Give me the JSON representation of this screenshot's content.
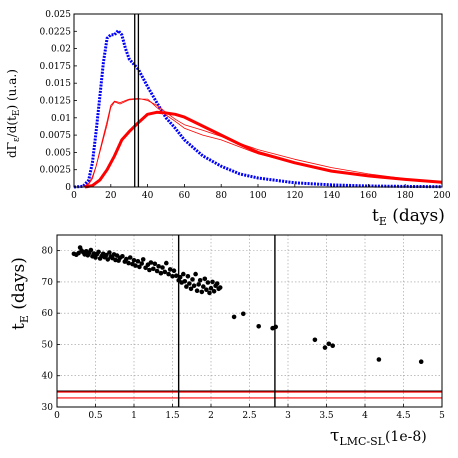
{
  "chart_data": [
    {
      "type": "line",
      "xlabel": "t",
      "xlabel_sub": "E",
      "xlabel_unit": " (days)",
      "ylabel": "dΓ",
      "ylabel_sub1": "ε",
      "ylabel_mid": "/d(t",
      "ylabel_sub2": "E",
      "ylabel_unit": ") (u.a.)",
      "xlim": [
        0,
        200
      ],
      "ylim": [
        0,
        0.025
      ],
      "xticks": [
        "0",
        "20",
        "40",
        "60",
        "80",
        "100",
        "120",
        "140",
        "160",
        "180",
        "200"
      ],
      "yticks": [
        "0",
        "0.0025",
        "0.005",
        "0.0075",
        "0.01",
        "0.0125",
        "0.015",
        "0.0175",
        "0.02",
        "0.0225",
        "0.025"
      ],
      "grid": false,
      "vlines": [
        33,
        35
      ],
      "series": [
        {
          "color": "#0000ff",
          "style": "dotted",
          "points": [
            [
              0,
              0
            ],
            [
              5,
              0.0001
            ],
            [
              8,
              0.001
            ],
            [
              10,
              0.0035
            ],
            [
              12,
              0.008
            ],
            [
              14,
              0.013
            ],
            [
              16,
              0.018
            ],
            [
              18,
              0.0215
            ],
            [
              20,
              0.022
            ],
            [
              22,
              0.022
            ],
            [
              24,
              0.0226
            ],
            [
              26,
              0.022
            ],
            [
              28,
              0.02
            ],
            [
              30,
              0.0185
            ],
            [
              35,
              0.017
            ],
            [
              40,
              0.0145
            ],
            [
              45,
              0.0122
            ],
            [
              50,
              0.01
            ],
            [
              55,
              0.0085
            ],
            [
              60,
              0.0068
            ],
            [
              70,
              0.0045
            ],
            [
              80,
              0.003
            ],
            [
              90,
              0.0019
            ],
            [
              100,
              0.0013
            ],
            [
              120,
              0.0006
            ],
            [
              140,
              0.0003
            ],
            [
              160,
              0.00015
            ],
            [
              180,
              8e-05
            ],
            [
              200,
              4e-05
            ]
          ]
        },
        {
          "color": "#ff0000",
          "style": "thin",
          "points": [
            [
              5,
              0
            ],
            [
              8,
              0.0005
            ],
            [
              10,
              0.0015
            ],
            [
              12,
              0.003
            ],
            [
              15,
              0.006
            ],
            [
              18,
              0.009
            ],
            [
              20,
              0.0115
            ],
            [
              22,
              0.0123
            ],
            [
              25,
              0.012
            ],
            [
              30,
              0.0126
            ],
            [
              35,
              0.0127
            ],
            [
              40,
              0.0127
            ],
            [
              45,
              0.0115
            ],
            [
              50,
              0.0104
            ],
            [
              55,
              0.0095
            ],
            [
              60,
              0.0085
            ],
            [
              70,
              0.0075
            ],
            [
              80,
              0.0068
            ],
            [
              90,
              0.0058
            ],
            [
              100,
              0.0048
            ],
            [
              120,
              0.0035
            ],
            [
              140,
              0.0024
            ],
            [
              160,
              0.0016
            ],
            [
              180,
              0.001
            ],
            [
              200,
              0.0006
            ]
          ]
        },
        {
          "color": "#ff0000",
          "style": "thin",
          "points": [
            [
              5,
              0
            ],
            [
              8,
              0.0004
            ],
            [
              10,
              0.0012
            ],
            [
              12,
              0.003
            ],
            [
              15,
              0.0063
            ],
            [
              18,
              0.0095
            ],
            [
              20,
              0.0118
            ],
            [
              22,
              0.0124
            ],
            [
              25,
              0.0122
            ],
            [
              30,
              0.0127
            ],
            [
              35,
              0.0128
            ],
            [
              40,
              0.0125
            ],
            [
              45,
              0.0118
            ],
            [
              50,
              0.0108
            ],
            [
              55,
              0.0098
            ],
            [
              60,
              0.009
            ],
            [
              70,
              0.0082
            ],
            [
              80,
              0.0073
            ],
            [
              90,
              0.0063
            ],
            [
              100,
              0.0054
            ],
            [
              120,
              0.004
            ],
            [
              140,
              0.0028
            ],
            [
              160,
              0.0019
            ],
            [
              180,
              0.0012
            ],
            [
              200,
              0.0007
            ]
          ]
        },
        {
          "color": "#ff0000",
          "style": "thick",
          "points": [
            [
              6,
              0
            ],
            [
              10,
              0.0002
            ],
            [
              14,
              0.001
            ],
            [
              18,
              0.0025
            ],
            [
              22,
              0.0045
            ],
            [
              26,
              0.0068
            ],
            [
              30,
              0.008
            ],
            [
              35,
              0.0093
            ],
            [
              40,
              0.0105
            ],
            [
              45,
              0.0108
            ],
            [
              50,
              0.0107
            ],
            [
              55,
              0.0105
            ],
            [
              60,
              0.0101
            ],
            [
              70,
              0.0088
            ],
            [
              80,
              0.0075
            ],
            [
              90,
              0.0062
            ],
            [
              100,
              0.005
            ],
            [
              120,
              0.0035
            ],
            [
              140,
              0.0023
            ],
            [
              160,
              0.0016
            ],
            [
              180,
              0.0011
            ],
            [
              200,
              0.0007
            ]
          ]
        }
      ]
    },
    {
      "type": "scatter",
      "xlabel": "τ",
      "xlabel_sub": "LMC-SL",
      "xlabel_unit": "(1e-8)",
      "ylabel": "t",
      "ylabel_sub": "E",
      "ylabel_unit": " (days)",
      "xlim": [
        0,
        5
      ],
      "ylim": [
        30,
        85
      ],
      "xticks": [
        "0",
        "0.5",
        "1",
        "1.5",
        "2",
        "2.5",
        "3",
        "3.5",
        "4",
        "4.5",
        "5"
      ],
      "yticks": [
        "30",
        "40",
        "50",
        "60",
        "70",
        "80"
      ],
      "grid": true,
      "vlines": [
        1.58,
        2.83
      ],
      "hlines": [
        {
          "y": 35.1,
          "color": "#000000"
        },
        {
          "y": 34.8,
          "color": "#ff0000"
        },
        {
          "y": 32.9,
          "color": "#ff0000"
        }
      ],
      "points": [
        [
          0.22,
          79
        ],
        [
          0.25,
          78.7
        ],
        [
          0.28,
          79.2
        ],
        [
          0.3,
          81
        ],
        [
          0.32,
          80
        ],
        [
          0.34,
          79.5
        ],
        [
          0.36,
          78.8
        ],
        [
          0.38,
          79.8
        ],
        [
          0.4,
          78.5
        ],
        [
          0.42,
          79.3
        ],
        [
          0.44,
          80.2
        ],
        [
          0.46,
          78.2
        ],
        [
          0.48,
          79.1
        ],
        [
          0.5,
          77.8
        ],
        [
          0.52,
          78.9
        ],
        [
          0.54,
          79.6
        ],
        [
          0.56,
          77.5
        ],
        [
          0.58,
          78.3
        ],
        [
          0.6,
          79
        ],
        [
          0.62,
          77.9
        ],
        [
          0.64,
          78.6
        ],
        [
          0.66,
          77.2
        ],
        [
          0.68,
          79.4
        ],
        [
          0.7,
          78.1
        ],
        [
          0.72,
          77.6
        ],
        [
          0.74,
          78.8
        ],
        [
          0.76,
          77
        ],
        [
          0.78,
          78.4
        ],
        [
          0.8,
          76.8
        ],
        [
          0.82,
          77.7
        ],
        [
          0.85,
          78.2
        ],
        [
          0.88,
          76.5
        ],
        [
          0.9,
          77.3
        ],
        [
          0.93,
          76
        ],
        [
          0.95,
          77.8
        ],
        [
          0.98,
          75.7
        ],
        [
          1.0,
          76.9
        ],
        [
          1.02,
          75.2
        ],
        [
          1.05,
          76.6
        ],
        [
          1.07,
          74.8
        ],
        [
          1.1,
          75.9
        ],
        [
          1.12,
          77.2
        ],
        [
          1.15,
          74.5
        ],
        [
          1.18,
          75.5
        ],
        [
          1.2,
          73.8
        ],
        [
          1.22,
          76.2
        ],
        [
          1.25,
          74.2
        ],
        [
          1.27,
          75.8
        ],
        [
          1.3,
          73.5
        ],
        [
          1.32,
          75
        ],
        [
          1.35,
          72.8
        ],
        [
          1.37,
          74.6
        ],
        [
          1.4,
          73.2
        ],
        [
          1.42,
          76
        ],
        [
          1.45,
          72.5
        ],
        [
          1.47,
          74
        ],
        [
          1.5,
          71.8
        ],
        [
          1.52,
          73.6
        ],
        [
          1.55,
          72
        ],
        [
          1.58,
          70.5
        ],
        [
          1.6,
          71.5
        ],
        [
          1.62,
          69.8
        ],
        [
          1.64,
          72.5
        ],
        [
          1.66,
          70.2
        ],
        [
          1.68,
          68.5
        ],
        [
          1.7,
          71.8
        ],
        [
          1.72,
          69.5
        ],
        [
          1.74,
          67.8
        ],
        [
          1.76,
          70.8
        ],
        [
          1.78,
          68.8
        ],
        [
          1.8,
          72.5
        ],
        [
          1.82,
          67.2
        ],
        [
          1.84,
          69.2
        ],
        [
          1.86,
          70.5
        ],
        [
          1.88,
          66.8
        ],
        [
          1.9,
          68.5
        ],
        [
          1.92,
          71
        ],
        [
          1.94,
          67.5
        ],
        [
          1.96,
          69.8
        ],
        [
          1.98,
          66.5
        ],
        [
          2.0,
          68
        ],
        [
          2.02,
          70
        ],
        [
          2.04,
          67
        ],
        [
          2.06,
          68.8
        ],
        [
          2.08,
          69.5
        ],
        [
          2.1,
          67.8
        ],
        [
          2.12,
          68.2
        ],
        [
          2.3,
          58.8
        ],
        [
          2.42,
          59.8
        ],
        [
          2.62,
          55.8
        ],
        [
          2.8,
          55.2
        ],
        [
          2.84,
          55.6
        ],
        [
          3.35,
          51.5
        ],
        [
          3.48,
          49
        ],
        [
          3.53,
          50.2
        ],
        [
          3.58,
          49.6
        ],
        [
          4.18,
          45.2
        ],
        [
          4.73,
          44.5
        ]
      ]
    }
  ]
}
